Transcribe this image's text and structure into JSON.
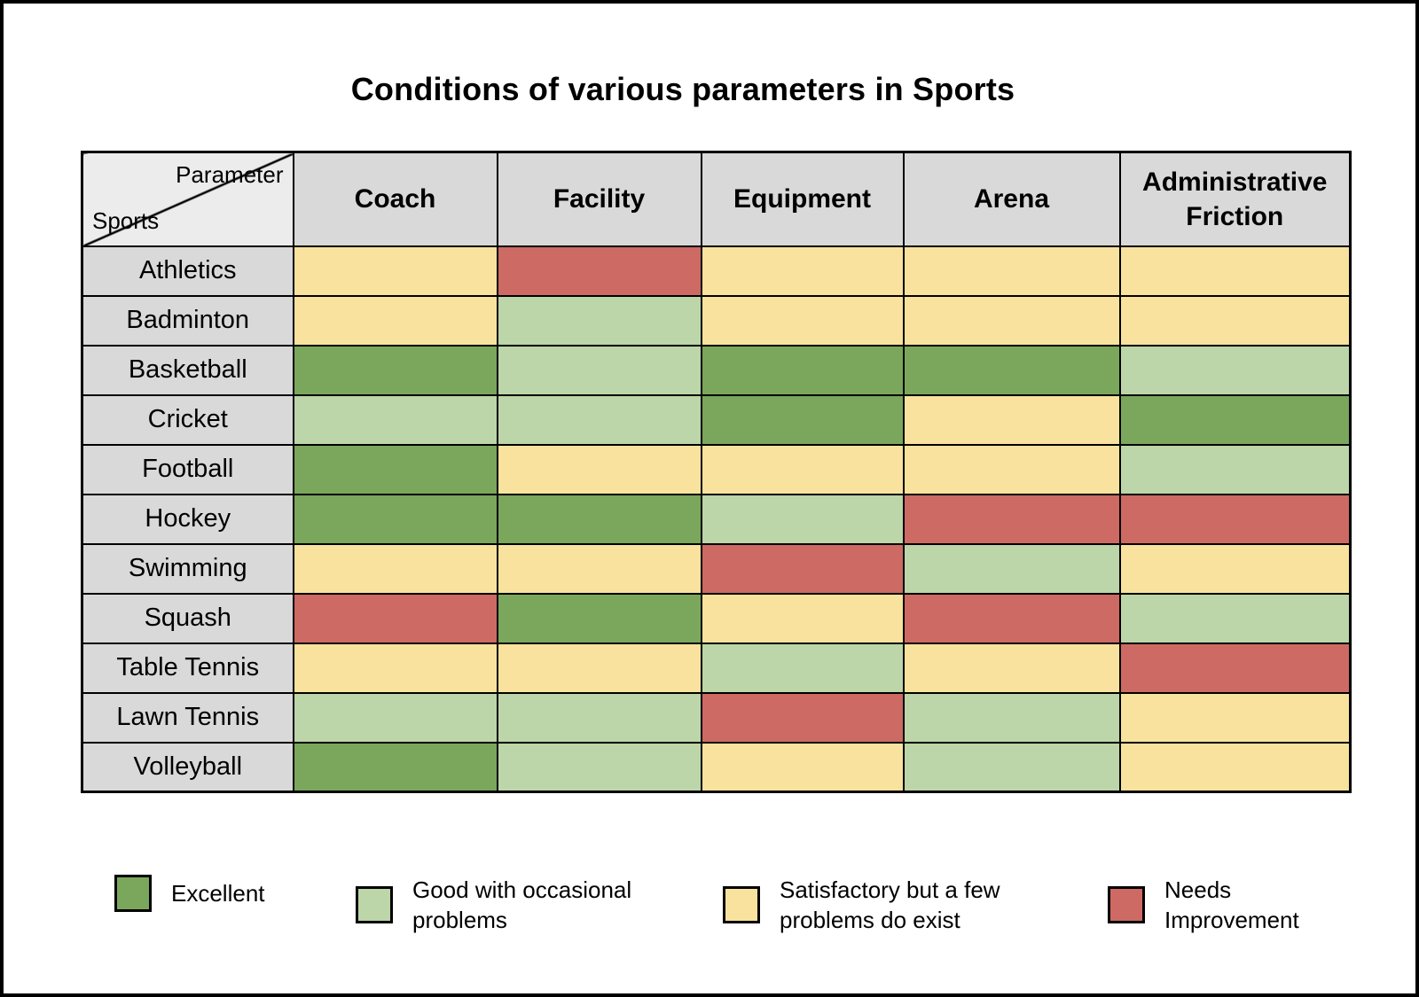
{
  "title": "Conditions of various parameters in Sports",
  "corner": {
    "parameter_label": "Parameter",
    "sports_label": "Sports"
  },
  "colors": {
    "excellent": "#7AA75C",
    "good": "#BCD5A9",
    "satisfactory": "#F9E29E",
    "needs-improvement": "#CD6A63",
    "header_bg": "#D9D9D9",
    "corner_bg": "#ECECEC",
    "grid": "#000000"
  },
  "chart_data": {
    "type": "heatmap",
    "title": "Conditions of various parameters in Sports",
    "columns": [
      "Coach",
      "Facility",
      "Equipment",
      "Arena",
      "Administrative Friction"
    ],
    "rows": [
      "Athletics",
      "Badminton",
      "Basketball",
      "Cricket",
      "Football",
      "Hockey",
      "Swimming",
      "Squash",
      "Table Tennis",
      "Lawn Tennis",
      "Volleyball"
    ],
    "values": [
      [
        "satisfactory",
        "needs-improvement",
        "satisfactory",
        "satisfactory",
        "satisfactory"
      ],
      [
        "satisfactory",
        "good",
        "satisfactory",
        "satisfactory",
        "satisfactory"
      ],
      [
        "excellent",
        "good",
        "excellent",
        "excellent",
        "good"
      ],
      [
        "good",
        "good",
        "excellent",
        "satisfactory",
        "excellent"
      ],
      [
        "excellent",
        "satisfactory",
        "satisfactory",
        "satisfactory",
        "good"
      ],
      [
        "excellent",
        "excellent",
        "good",
        "needs-improvement",
        "needs-improvement"
      ],
      [
        "satisfactory",
        "satisfactory",
        "needs-improvement",
        "good",
        "satisfactory"
      ],
      [
        "needs-improvement",
        "excellent",
        "satisfactory",
        "needs-improvement",
        "good"
      ],
      [
        "satisfactory",
        "satisfactory",
        "good",
        "satisfactory",
        "needs-improvement"
      ],
      [
        "good",
        "good",
        "needs-improvement",
        "good",
        "satisfactory"
      ],
      [
        "excellent",
        "good",
        "satisfactory",
        "good",
        "satisfactory"
      ]
    ],
    "legend_position": "bottom",
    "legend": [
      {
        "key": "excellent",
        "label": "Excellent"
      },
      {
        "key": "good",
        "label": "Good with occasional problems"
      },
      {
        "key": "satisfactory",
        "label": "Satisfactory but a few problems do exist"
      },
      {
        "key": "needs-improvement",
        "label": "Needs Improvement"
      }
    ]
  }
}
